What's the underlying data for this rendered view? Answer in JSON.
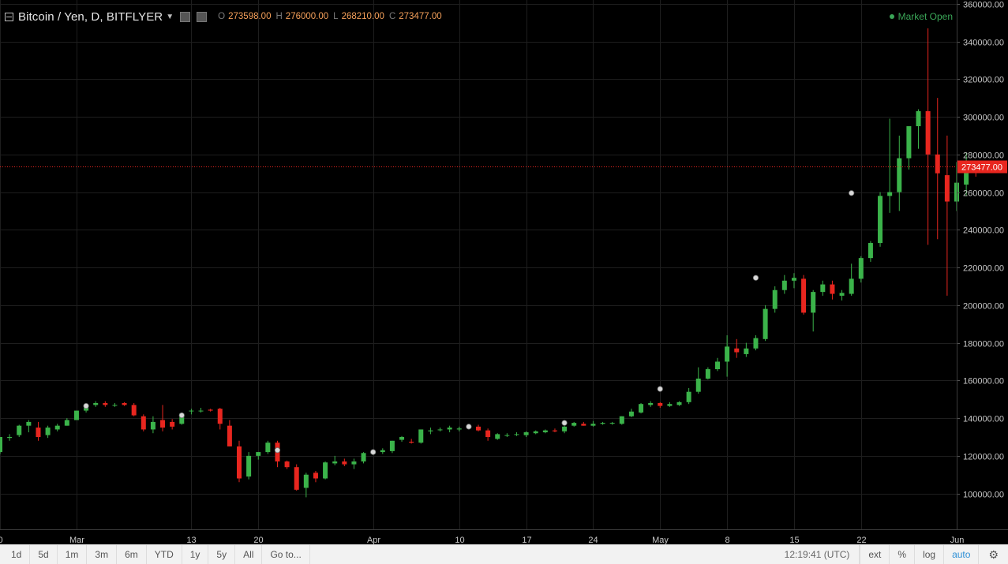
{
  "legend": {
    "symbol": "Bitcoin / Yen, D, BITFLYER",
    "ohlc": [
      {
        "key": "O",
        "value": "273598.00"
      },
      {
        "key": "H",
        "value": "276000.00"
      },
      {
        "key": "L",
        "value": "268210.00"
      },
      {
        "key": "C",
        "value": "273477.00"
      }
    ]
  },
  "market_status": "Market Open",
  "toolbar": {
    "ranges": [
      "1d",
      "5d",
      "1m",
      "3m",
      "6m",
      "YTD",
      "1y",
      "5y",
      "All",
      "Go to..."
    ],
    "clock": "12:19:41 (UTC)",
    "options": [
      "ext",
      "%",
      "log",
      "auto"
    ]
  },
  "colors": {
    "up": "#3bb34a",
    "down": "#e8261f",
    "grid": "#1e1e1e",
    "price_line": "#e8261f"
  },
  "chart_data": {
    "type": "candlestick",
    "title": "Bitcoin / Yen, D, BITFLYER",
    "y_ticks": [
      100000,
      120000,
      140000,
      160000,
      180000,
      200000,
      220000,
      240000,
      260000,
      280000,
      300000,
      320000,
      340000,
      360000
    ],
    "y_tick_labels": [
      "100000.00",
      "120000.00",
      "140000.00",
      "160000.00",
      "180000.00",
      "200000.00",
      "220000.00",
      "240000.00",
      "260000.00",
      "280000.00",
      "300000.00",
      "320000.00",
      "340000.00",
      "360000.00"
    ],
    "ylim": [
      81000,
      362000
    ],
    "x_start": "2017-02-21",
    "x_end": "2017-06-01",
    "x_ticks": [
      {
        "date": "2017-02-21",
        "label": "0"
      },
      {
        "date": "2017-03-01",
        "label": "Mar"
      },
      {
        "date": "2017-03-13",
        "label": "13"
      },
      {
        "date": "2017-03-20",
        "label": "20"
      },
      {
        "date": "2017-04-01",
        "label": "Apr"
      },
      {
        "date": "2017-04-10",
        "label": "10"
      },
      {
        "date": "2017-04-17",
        "label": "17"
      },
      {
        "date": "2017-04-24",
        "label": "24"
      },
      {
        "date": "2017-05-01",
        "label": "May"
      },
      {
        "date": "2017-05-08",
        "label": "8"
      },
      {
        "date": "2017-05-15",
        "label": "15"
      },
      {
        "date": "2017-05-22",
        "label": "22"
      },
      {
        "date": "2017-06-01",
        "label": "Jun"
      }
    ],
    "last_price": 273477.0,
    "last_price_label": "273477.00",
    "candles": [
      [
        122000,
        130000,
        121000,
        130000
      ],
      [
        129500,
        131500,
        128000,
        130000
      ],
      [
        131000,
        136500,
        130000,
        136000
      ],
      [
        136000,
        139000,
        132500,
        138000
      ],
      [
        135000,
        138000,
        128000,
        130000
      ],
      [
        131000,
        136000,
        129500,
        135000
      ],
      [
        134000,
        137000,
        133000,
        136000
      ],
      [
        136000,
        140000,
        136000,
        139000
      ],
      [
        139000,
        144000,
        139000,
        144000
      ],
      [
        144000,
        147000,
        143000,
        147000
      ],
      [
        147000,
        149000,
        146000,
        148000
      ],
      [
        148000,
        149000,
        146000,
        147000
      ],
      [
        147000,
        148000,
        146000,
        147000
      ],
      [
        148000,
        148500,
        146500,
        147000
      ],
      [
        147000,
        148000,
        141000,
        141500
      ],
      [
        141000,
        142000,
        133000,
        134000
      ],
      [
        134000,
        141000,
        132000,
        138000
      ],
      [
        139000,
        147000,
        133000,
        135000
      ],
      [
        138000,
        139500,
        134000,
        135500
      ],
      [
        137000,
        143000,
        136500,
        142500
      ],
      [
        144000,
        145000,
        142000,
        144000
      ],
      [
        144000,
        145500,
        143000,
        144000
      ],
      [
        144500,
        145000,
        143500,
        144000
      ],
      [
        145000,
        145500,
        134000,
        137000
      ],
      [
        136000,
        139000,
        125000,
        125000
      ],
      [
        125000,
        128000,
        106000,
        108000
      ],
      [
        109000,
        122000,
        107500,
        120000
      ],
      [
        120000,
        122000,
        118000,
        122000
      ],
      [
        122000,
        128000,
        121000,
        127000
      ],
      [
        127000,
        128000,
        114000,
        117000
      ],
      [
        117000,
        117500,
        113000,
        114000
      ],
      [
        114000,
        115500,
        101500,
        102000
      ],
      [
        103000,
        111000,
        98000,
        110000
      ],
      [
        111000,
        112000,
        106000,
        108000
      ],
      [
        108000,
        117000,
        107500,
        116500
      ],
      [
        116000,
        120000,
        115000,
        117000
      ],
      [
        117000,
        118500,
        114500,
        115500
      ],
      [
        115500,
        118500,
        113000,
        117000
      ],
      [
        117000,
        122000,
        116000,
        121500
      ],
      [
        121000,
        122500,
        120500,
        122000
      ],
      [
        122000,
        124000,
        121000,
        123000
      ],
      [
        122500,
        128000,
        121500,
        128000
      ],
      [
        128500,
        130500,
        127500,
        130000
      ],
      [
        127500,
        129000,
        126500,
        127000
      ],
      [
        127000,
        134000,
        126500,
        134000
      ],
      [
        133000,
        135000,
        131500,
        133500
      ],
      [
        134000,
        135000,
        133000,
        134000
      ],
      [
        134000,
        136000,
        132500,
        135000
      ],
      [
        134000,
        135500,
        133000,
        134500
      ],
      [
        135000,
        136000,
        134000,
        135500
      ],
      [
        135500,
        136500,
        133000,
        133500
      ],
      [
        133500,
        134500,
        128000,
        130000
      ],
      [
        129000,
        132000,
        128500,
        131500
      ],
      [
        131000,
        132000,
        130000,
        131000
      ],
      [
        131500,
        132500,
        130500,
        131500
      ],
      [
        131000,
        133000,
        130000,
        132500
      ],
      [
        132000,
        133500,
        131500,
        133000
      ],
      [
        132500,
        134000,
        132000,
        133500
      ],
      [
        133500,
        134500,
        132500,
        133000
      ],
      [
        133000,
        136000,
        132000,
        135500
      ],
      [
        136000,
        138000,
        135500,
        137500
      ],
      [
        137000,
        138000,
        136000,
        136000
      ],
      [
        136000,
        138500,
        135500,
        137000
      ],
      [
        137000,
        138000,
        136500,
        137500
      ],
      [
        137500,
        138000,
        136500,
        137500
      ],
      [
        137000,
        141000,
        136500,
        141000
      ],
      [
        141000,
        145000,
        140500,
        143500
      ],
      [
        143000,
        148000,
        142500,
        147500
      ],
      [
        147000,
        149000,
        146000,
        148000
      ],
      [
        148000,
        148500,
        145500,
        146500
      ],
      [
        146500,
        148500,
        146000,
        147500
      ],
      [
        147000,
        149000,
        146500,
        148500
      ],
      [
        148500,
        156000,
        147500,
        154000
      ],
      [
        154000,
        167000,
        153000,
        161000
      ],
      [
        161000,
        167000,
        160500,
        166000
      ],
      [
        166000,
        172000,
        165000,
        170000
      ],
      [
        170000,
        184000,
        162000,
        178000
      ],
      [
        177000,
        182000,
        172000,
        175000
      ],
      [
        174000,
        180000,
        172500,
        177000
      ],
      [
        177000,
        184000,
        176000,
        182500
      ],
      [
        182000,
        200000,
        181000,
        198000
      ],
      [
        198000,
        210000,
        196000,
        208000
      ],
      [
        208000,
        216000,
        206000,
        213000
      ],
      [
        213000,
        217000,
        209000,
        214500
      ],
      [
        214000,
        216000,
        195000,
        196000
      ],
      [
        196000,
        208000,
        186000,
        207000
      ],
      [
        207000,
        213000,
        205000,
        211000
      ],
      [
        211000,
        213000,
        203000,
        206000
      ],
      [
        205000,
        208000,
        202500,
        206500
      ],
      [
        206000,
        222000,
        205000,
        214000
      ],
      [
        214000,
        226000,
        212000,
        225000
      ],
      [
        225000,
        234000,
        223000,
        233000
      ],
      [
        233000,
        260000,
        231000,
        258000
      ],
      [
        258000,
        299000,
        249000,
        260000
      ],
      [
        260000,
        290000,
        250000,
        278000
      ],
      [
        278000,
        295000,
        272000,
        295000
      ],
      [
        295000,
        304000,
        283000,
        303000
      ],
      [
        303000,
        347000,
        232000,
        280000
      ],
      [
        280000,
        310000,
        235000,
        270000
      ],
      [
        269000,
        290000,
        205000,
        255000
      ],
      [
        255000,
        276000,
        250000,
        265000
      ],
      [
        264000,
        281000,
        258000,
        274000
      ],
      [
        273598,
        276000,
        268210,
        273477
      ]
    ],
    "event_markers": [
      {
        "date": "2017-03-02",
        "value": 146500
      },
      {
        "date": "2017-03-12",
        "value": 141500
      },
      {
        "date": "2017-03-22",
        "value": 123000
      },
      {
        "date": "2017-04-01",
        "value": 122000
      },
      {
        "date": "2017-04-11",
        "value": 135500
      },
      {
        "date": "2017-04-21",
        "value": 137500
      },
      {
        "date": "2017-05-01",
        "value": 155500
      },
      {
        "date": "2017-05-11",
        "value": 214500
      },
      {
        "date": "2017-05-21",
        "value": 259500
      }
    ]
  }
}
